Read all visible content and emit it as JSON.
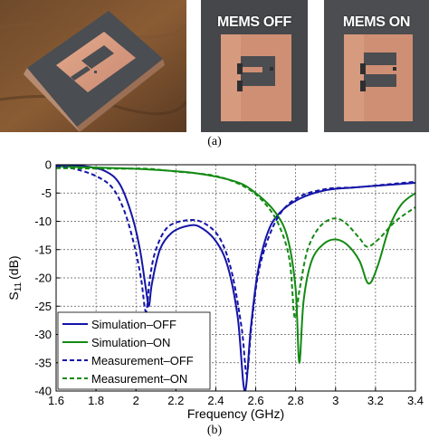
{
  "photos": {
    "off_label": "MEMS OFF",
    "on_label": "MEMS ON"
  },
  "captions": {
    "a": "(a)",
    "b": "(b)"
  },
  "chart_data": {
    "type": "line",
    "xlabel": "Frequency (GHz)",
    "ylabel": "S11 (dB)",
    "ylabel_main": "S",
    "ylabel_sub": "11",
    "ylabel_unit": "(dB)",
    "xlim": [
      1.6,
      3.4
    ],
    "ylim": [
      -40,
      0
    ],
    "xticks": [
      1.6,
      1.8,
      2,
      2.2,
      2.4,
      2.6,
      2.8,
      3,
      3.2,
      3.4
    ],
    "xtick_labels": [
      "1.6",
      "1.8",
      "2",
      "2.2",
      "2.4",
      "2.6",
      "2.8",
      "3",
      "3.2",
      "3.4"
    ],
    "yticks": [
      0,
      -5,
      -10,
      -15,
      -20,
      -25,
      -30,
      -35,
      -40
    ],
    "ytick_labels": [
      "0",
      "-5",
      "-10",
      "-15",
      "-20",
      "-25",
      "-30",
      "-35",
      "-40"
    ],
    "grid": true,
    "legend_position": "bottom-left",
    "series": [
      {
        "name": "Simulation–OFF",
        "color": "#1414a8",
        "dash": "solid",
        "points": [
          [
            1.6,
            0
          ],
          [
            1.75,
            -0.3
          ],
          [
            1.85,
            -1.2
          ],
          [
            1.92,
            -3.5
          ],
          [
            1.98,
            -9
          ],
          [
            2.02,
            -15
          ],
          [
            2.05,
            -22
          ],
          [
            2.065,
            -25
          ],
          [
            2.08,
            -21
          ],
          [
            2.12,
            -15
          ],
          [
            2.18,
            -12
          ],
          [
            2.26,
            -10.8
          ],
          [
            2.32,
            -11
          ],
          [
            2.4,
            -13.5
          ],
          [
            2.46,
            -18
          ],
          [
            2.51,
            -27
          ],
          [
            2.545,
            -40
          ],
          [
            2.575,
            -29
          ],
          [
            2.61,
            -19
          ],
          [
            2.66,
            -12
          ],
          [
            2.72,
            -8.5
          ],
          [
            2.82,
            -6
          ],
          [
            2.95,
            -4.5
          ],
          [
            3.1,
            -4
          ],
          [
            3.25,
            -3.6
          ],
          [
            3.4,
            -3.2
          ]
        ]
      },
      {
        "name": "Simulation–ON",
        "color": "#138a13",
        "dash": "solid",
        "points": [
          [
            1.6,
            -0.3
          ],
          [
            1.9,
            -0.6
          ],
          [
            2.05,
            -0.8
          ],
          [
            2.3,
            -1.5
          ],
          [
            2.5,
            -3
          ],
          [
            2.6,
            -5
          ],
          [
            2.7,
            -8.5
          ],
          [
            2.76,
            -13
          ],
          [
            2.8,
            -22
          ],
          [
            2.818,
            -35
          ],
          [
            2.84,
            -24
          ],
          [
            2.88,
            -17
          ],
          [
            2.94,
            -14
          ],
          [
            3.0,
            -13.2
          ],
          [
            3.06,
            -14.2
          ],
          [
            3.12,
            -17
          ],
          [
            3.165,
            -21
          ],
          [
            3.21,
            -18
          ],
          [
            3.27,
            -11
          ],
          [
            3.33,
            -7
          ],
          [
            3.4,
            -5
          ]
        ]
      },
      {
        "name": "Measurement–OFF",
        "color": "#1414a8",
        "dash": "dashed",
        "points": [
          [
            1.6,
            -0.2
          ],
          [
            1.7,
            -0.8
          ],
          [
            1.8,
            -2
          ],
          [
            1.88,
            -4
          ],
          [
            1.94,
            -8
          ],
          [
            1.99,
            -14
          ],
          [
            2.025,
            -20
          ],
          [
            2.05,
            -26
          ],
          [
            2.07,
            -20
          ],
          [
            2.1,
            -15
          ],
          [
            2.16,
            -11
          ],
          [
            2.26,
            -9.8
          ],
          [
            2.34,
            -10.3
          ],
          [
            2.42,
            -13
          ],
          [
            2.48,
            -19
          ],
          [
            2.53,
            -29
          ],
          [
            2.555,
            -37
          ],
          [
            2.58,
            -28
          ],
          [
            2.62,
            -18
          ],
          [
            2.7,
            -10
          ],
          [
            2.8,
            -6
          ],
          [
            2.95,
            -4.3
          ],
          [
            3.1,
            -4
          ],
          [
            3.25,
            -3.5
          ],
          [
            3.4,
            -3
          ]
        ]
      },
      {
        "name": "Measurement–ON",
        "color": "#138a13",
        "dash": "dashed",
        "points": [
          [
            1.6,
            -0.6
          ],
          [
            1.9,
            -0.7
          ],
          [
            2.05,
            -0.7
          ],
          [
            2.2,
            -1.2
          ],
          [
            2.4,
            -2
          ],
          [
            2.55,
            -4
          ],
          [
            2.65,
            -7
          ],
          [
            2.72,
            -11
          ],
          [
            2.77,
            -17
          ],
          [
            2.795,
            -27
          ],
          [
            2.82,
            -22
          ],
          [
            2.86,
            -15
          ],
          [
            2.92,
            -11
          ],
          [
            2.99,
            -9.5
          ],
          [
            3.05,
            -10.3
          ],
          [
            3.12,
            -13
          ],
          [
            3.16,
            -14.5
          ],
          [
            3.22,
            -13
          ],
          [
            3.3,
            -10
          ],
          [
            3.4,
            -7.5
          ]
        ]
      }
    ]
  }
}
